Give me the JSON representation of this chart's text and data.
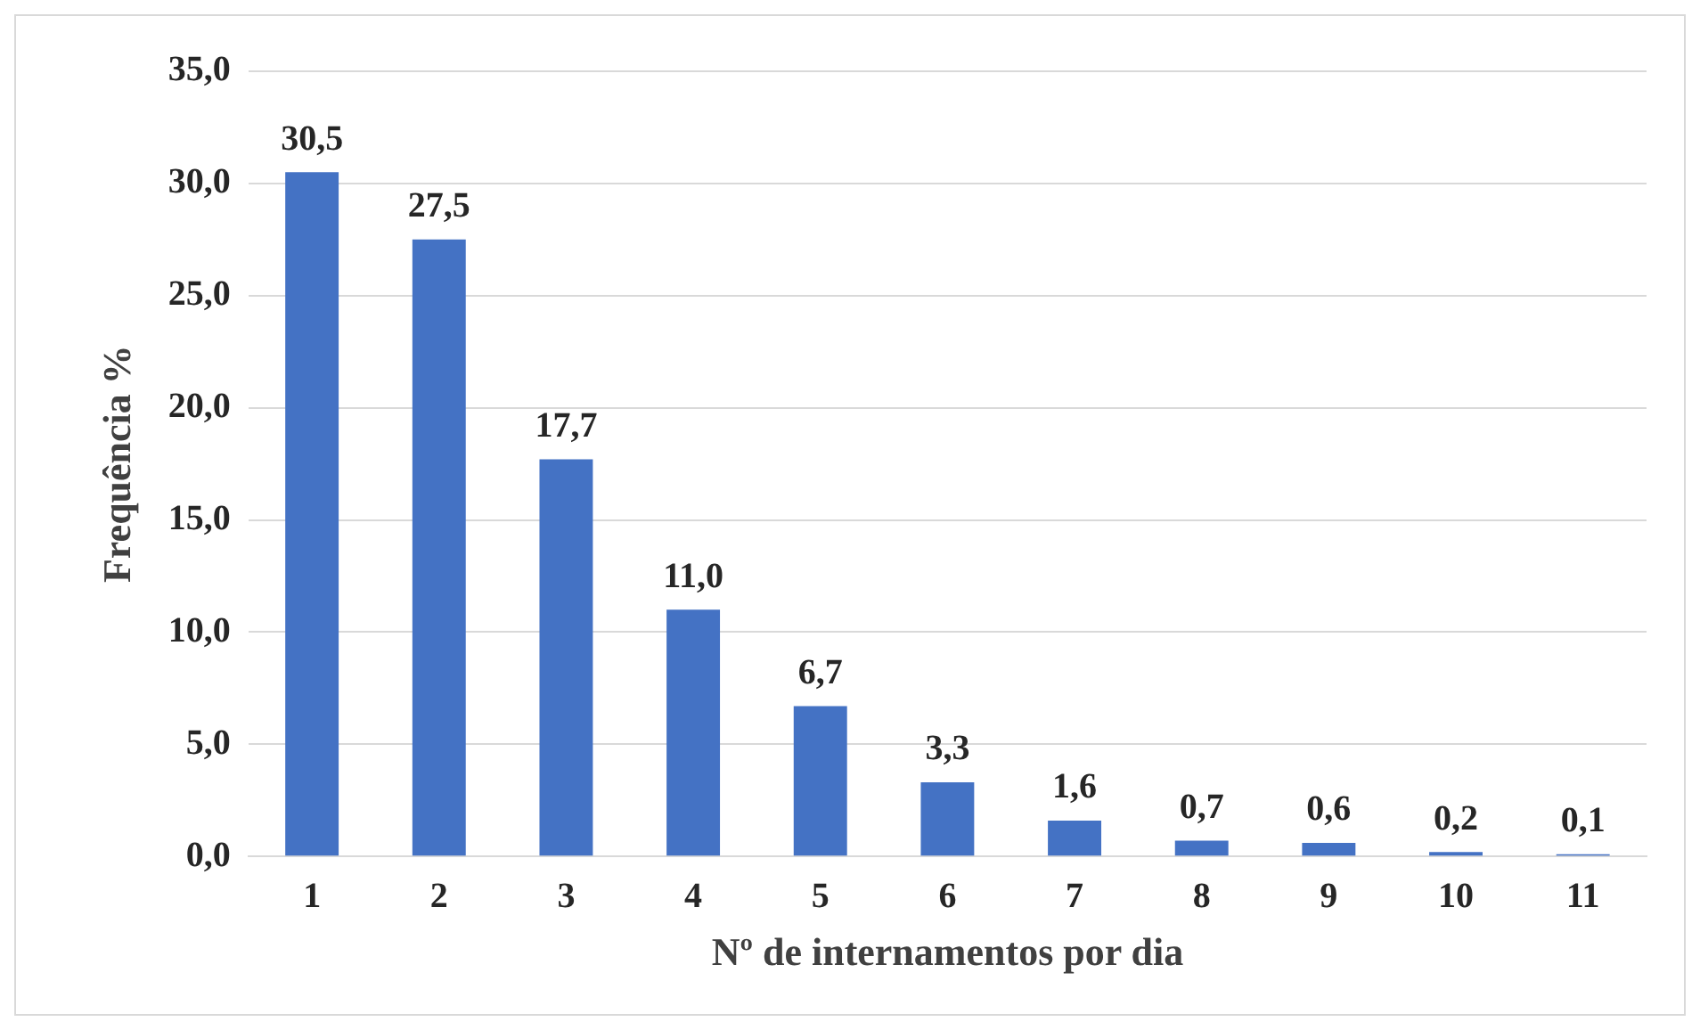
{
  "chart_data": {
    "type": "bar",
    "xlabel": "Nº de internamentos por dia",
    "ylabel": "Frequência %",
    "categories": [
      "1",
      "2",
      "3",
      "4",
      "5",
      "6",
      "7",
      "8",
      "9",
      "10",
      "11"
    ],
    "values": [
      30.5,
      27.5,
      17.7,
      11.0,
      6.7,
      3.3,
      1.6,
      0.7,
      0.6,
      0.2,
      0.1
    ],
    "value_labels": [
      "30,5",
      "27,5",
      "17,7",
      "11,0",
      "6,7",
      "3,3",
      "1,6",
      "0,7",
      "0,6",
      "0,2",
      "0,1"
    ],
    "color": "#4472c4",
    "ylim": [
      0,
      35
    ],
    "yticks": [
      {
        "value": 0,
        "label": "0,0"
      },
      {
        "value": 5,
        "label": "5,0"
      },
      {
        "value": 10,
        "label": "10,0"
      },
      {
        "value": 15,
        "label": "15,0"
      },
      {
        "value": 20,
        "label": "20,0"
      },
      {
        "value": 25,
        "label": "25,0"
      },
      {
        "value": 30,
        "label": "30,0"
      },
      {
        "value": 35,
        "label": "35,0"
      }
    ],
    "grid": "y",
    "legend": false
  }
}
